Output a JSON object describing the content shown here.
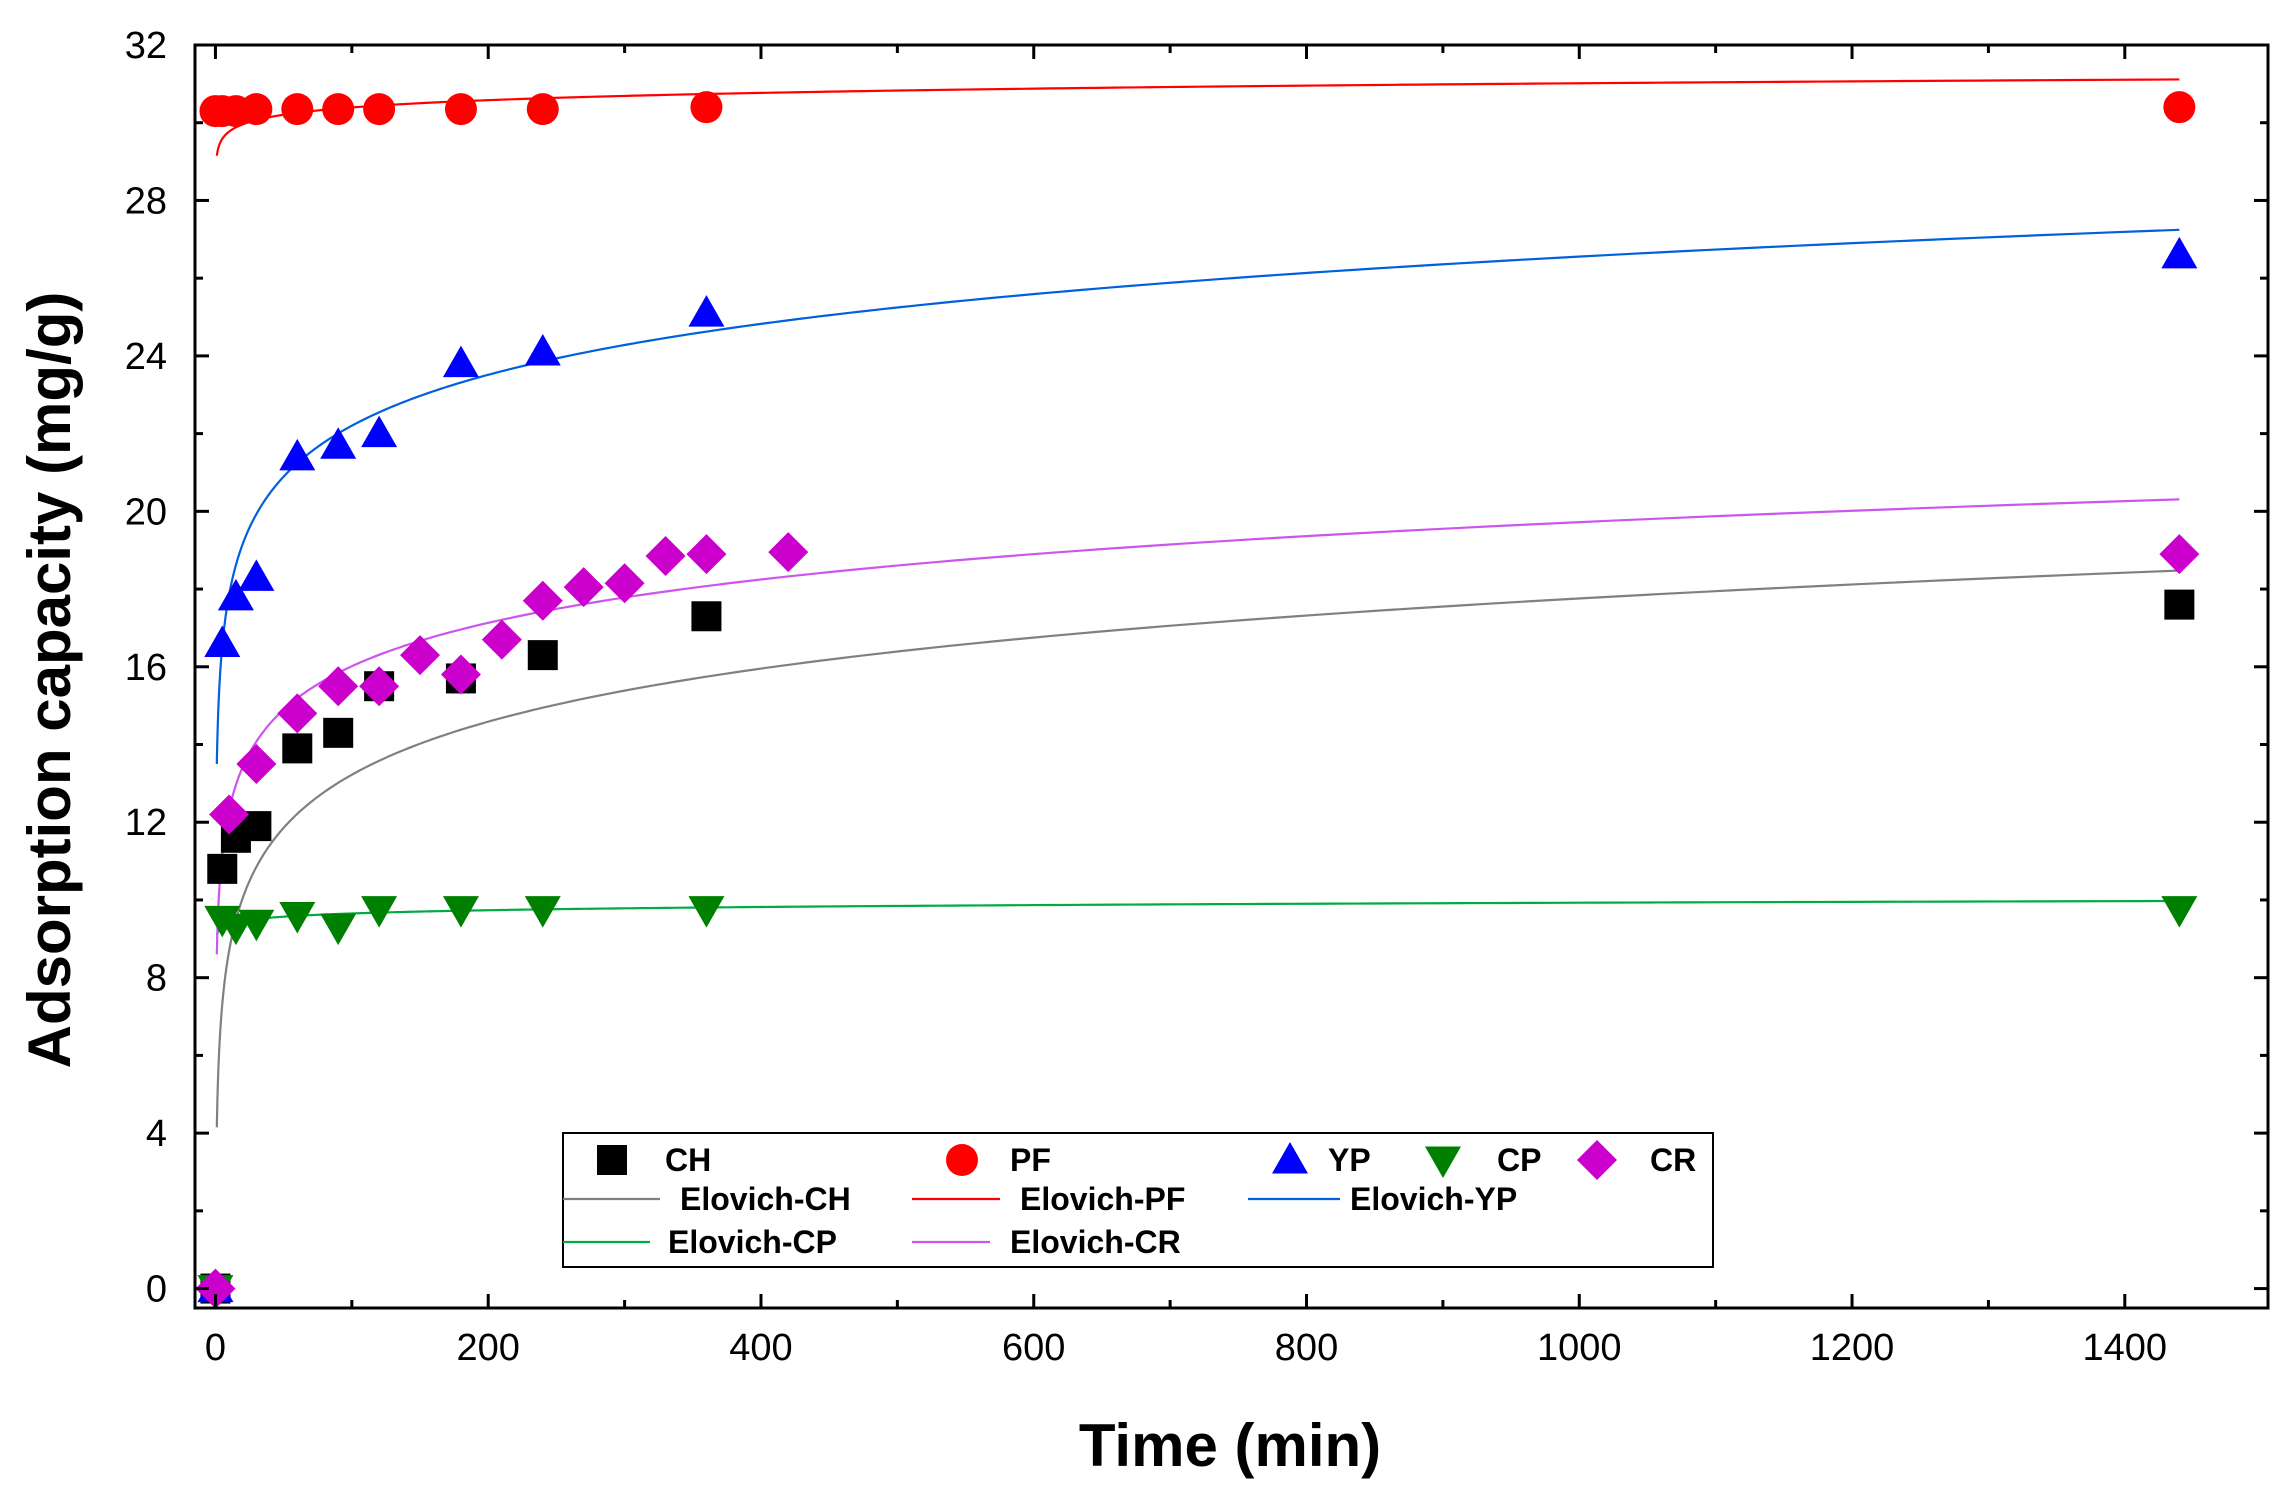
{
  "chart_data": {
    "type": "scatter",
    "xlabel": "Time (min)",
    "ylabel": "Adsorption capacity (mg/g)",
    "xlim": [
      -15,
      1505
    ],
    "ylim": [
      -0.5,
      32
    ],
    "xticks": [
      0,
      200,
      400,
      600,
      800,
      1000,
      1200,
      1400
    ],
    "yticks": [
      0,
      4,
      8,
      12,
      16,
      20,
      24,
      28,
      32
    ],
    "series": [
      {
        "name": "CH",
        "marker": "square",
        "color": "#000000",
        "points": [
          [
            0,
            0
          ],
          [
            5,
            10.8
          ],
          [
            15,
            11.6
          ],
          [
            30,
            11.9
          ],
          [
            60,
            13.9
          ],
          [
            90,
            14.3
          ],
          [
            120,
            15.5
          ],
          [
            180,
            15.7
          ],
          [
            240,
            16.3
          ],
          [
            360,
            17.3
          ],
          [
            1440,
            17.6
          ]
        ]
      },
      {
        "name": "PF",
        "marker": "circle",
        "color": "#ff0000",
        "points": [
          [
            0,
            30.3
          ],
          [
            5,
            30.3
          ],
          [
            15,
            30.3
          ],
          [
            30,
            30.35
          ],
          [
            60,
            30.35
          ],
          [
            90,
            30.35
          ],
          [
            120,
            30.35
          ],
          [
            180,
            30.35
          ],
          [
            240,
            30.35
          ],
          [
            360,
            30.4
          ],
          [
            1440,
            30.4
          ]
        ]
      },
      {
        "name": "YP",
        "marker": "triangle-up",
        "color": "#0000ff",
        "points": [
          [
            0,
            0
          ],
          [
            5,
            16.6
          ],
          [
            15,
            17.8
          ],
          [
            30,
            18.3
          ],
          [
            60,
            21.4
          ],
          [
            90,
            21.7
          ],
          [
            120,
            22.0
          ],
          [
            180,
            23.8
          ],
          [
            240,
            24.1
          ],
          [
            360,
            25.1
          ],
          [
            1440,
            26.6
          ]
        ]
      },
      {
        "name": "CP",
        "marker": "triangle-down",
        "color": "#008000",
        "points": [
          [
            0,
            0
          ],
          [
            5,
            9.5
          ],
          [
            15,
            9.3
          ],
          [
            30,
            9.4
          ],
          [
            60,
            9.6
          ],
          [
            90,
            9.3
          ],
          [
            120,
            9.75
          ],
          [
            180,
            9.75
          ],
          [
            240,
            9.75
          ],
          [
            360,
            9.75
          ],
          [
            1440,
            9.75
          ]
        ]
      },
      {
        "name": "CR",
        "marker": "diamond",
        "color": "#cc00cc",
        "points": [
          [
            0,
            0
          ],
          [
            10,
            12.2
          ],
          [
            30,
            13.5
          ],
          [
            60,
            14.8
          ],
          [
            90,
            15.5
          ],
          [
            120,
            15.5
          ],
          [
            150,
            16.3
          ],
          [
            180,
            15.8
          ],
          [
            210,
            16.7
          ],
          [
            240,
            17.7
          ],
          [
            270,
            18.05
          ],
          [
            300,
            18.15
          ],
          [
            330,
            18.85
          ],
          [
            360,
            18.9
          ],
          [
            420,
            18.95
          ],
          [
            1440,
            18.9
          ]
        ]
      }
    ],
    "fits": [
      {
        "name": "Elovich-CH",
        "color": "#808080",
        "a": 4.15,
        "b": 1.97,
        "from": 1,
        "to": 1440
      },
      {
        "name": "Elovich-PF",
        "color": "#ff0000",
        "a": 29.15,
        "b": 0.27,
        "from": 1,
        "to": 1440
      },
      {
        "name": "Elovich-YP",
        "color": "#0060dd",
        "a": 13.5,
        "b": 1.89,
        "from": 1,
        "to": 1440
      },
      {
        "name": "Elovich-CP",
        "color": "#00aa44",
        "a": 9.1,
        "b": 0.12,
        "from": 1,
        "to": 1440
      },
      {
        "name": "Elovich-CR",
        "color": "#cc55ee",
        "a": 8.6,
        "b": 1.61,
        "from": 1,
        "to": 1440
      }
    ],
    "legend": {
      "position": "bottom-center",
      "marker_entries": [
        "CH",
        "PF",
        "YP",
        "CP",
        "CR"
      ],
      "line_entries": [
        "Elovich-CH",
        "Elovich-PF",
        "Elovich-YP",
        "Elovich-CP",
        "Elovich-CR"
      ]
    }
  }
}
